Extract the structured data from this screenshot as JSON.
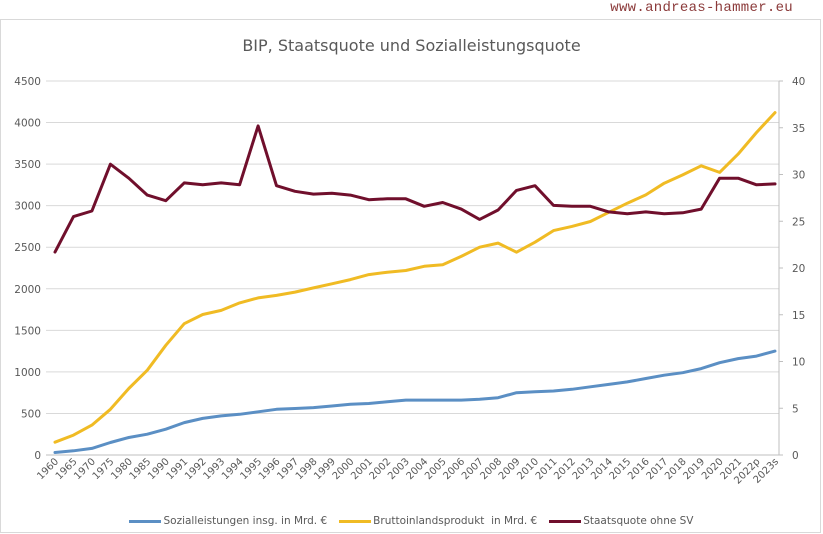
{
  "watermark": "www.andreas-hammer.eu",
  "chart_data": {
    "type": "line",
    "title": "BIP, Staatsquote und Sozialleistungsquote",
    "categories": [
      "1960",
      "1965",
      "1970",
      "1975",
      "1980",
      "1985",
      "1990",
      "1991",
      "1992",
      "1993",
      "1994",
      "1995",
      "1996",
      "1997",
      "1998",
      "1999",
      "2000",
      "2001",
      "2002",
      "2003",
      "2004",
      "2005",
      "2006",
      "2007",
      "2008",
      "2009",
      "2010",
      "2011",
      "2012",
      "2013",
      "2014",
      "2015",
      "2016",
      "2017",
      "2018",
      "2019",
      "2020",
      "2021",
      "2022p",
      "2023s"
    ],
    "y_left": {
      "range": [
        0,
        4500
      ],
      "ticks": [
        "0",
        "500",
        "1000",
        "1500",
        "2000",
        "2500",
        "3000",
        "3500",
        "4000",
        "4500"
      ]
    },
    "y_right": {
      "range": [
        0,
        40
      ],
      "ticks": [
        "0",
        "5",
        "10",
        "15",
        "20",
        "25",
        "30",
        "35",
        "40"
      ]
    },
    "grid": true,
    "legend_position": "bottom",
    "series": [
      {
        "name": "Sozialleistungen insg. in Mrd. €",
        "axis": "left",
        "color": "#5b8fc4",
        "values": [
          30,
          50,
          80,
          150,
          210,
          250,
          310,
          390,
          440,
          470,
          490,
          520,
          550,
          560,
          570,
          590,
          610,
          620,
          640,
          660,
          660,
          660,
          660,
          670,
          690,
          750,
          760,
          770,
          790,
          820,
          850,
          880,
          920,
          960,
          990,
          1040,
          1110,
          1160,
          1190,
          1250
        ]
      },
      {
        "name": "Bruttoinlandsprodukt  in Mrd. €",
        "axis": "left",
        "color": "#f0bb24",
        "values": [
          154,
          240,
          360,
          550,
          800,
          1020,
          1320,
          1580,
          1690,
          1740,
          1830,
          1890,
          1920,
          1960,
          2010,
          2060,
          2110,
          2170,
          2200,
          2220,
          2270,
          2290,
          2390,
          2500,
          2550,
          2440,
          2560,
          2700,
          2750,
          2810,
          2920,
          3030,
          3130,
          3270,
          3370,
          3480,
          3400,
          3620,
          3880,
          4120
        ]
      },
      {
        "name": "Staatsquote ohne SV",
        "axis": "right",
        "color": "#700f2c",
        "values": [
          21.7,
          25.5,
          26.1,
          31.1,
          29.6,
          27.8,
          27.2,
          29.1,
          28.9,
          29.1,
          28.9,
          35.2,
          28.8,
          28.2,
          27.9,
          28.0,
          27.8,
          27.3,
          27.4,
          27.4,
          26.6,
          27.0,
          26.3,
          25.2,
          26.2,
          28.3,
          28.8,
          26.7,
          26.6,
          26.6,
          26.0,
          25.8,
          26.0,
          25.8,
          25.9,
          26.3,
          29.6,
          29.6,
          28.9,
          29.0
        ]
      }
    ]
  }
}
